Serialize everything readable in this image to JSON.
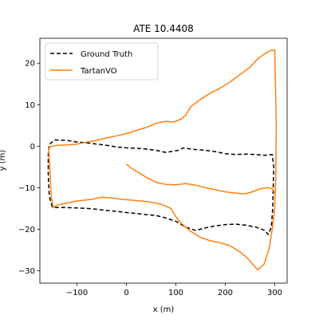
{
  "chart_data": {
    "type": "line",
    "title": "ATE 10.4408",
    "xlabel": "x (m)",
    "ylabel": "y (m)",
    "xlim": [
      -175,
      325
    ],
    "ylim": [
      -33,
      26
    ],
    "xticks": [
      -100,
      0,
      100,
      200,
      300
    ],
    "yticks": [
      -30,
      -20,
      -10,
      0,
      10,
      20
    ],
    "xtick_labels": [
      "−100",
      "0",
      "100",
      "200",
      "300"
    ],
    "ytick_labels": [
      "−30",
      "−20",
      "−10",
      "0",
      "10",
      "20"
    ],
    "grid": false,
    "legend_position": "upper-left",
    "series": [
      {
        "name": "Ground Truth",
        "color": "#000000",
        "dash": "dashed",
        "x": [
          -155,
          -145,
          -120,
          -100,
          -80,
          -60,
          -40,
          -20,
          0,
          20,
          40,
          60,
          80,
          95,
          105,
          115,
          125,
          140,
          160,
          180,
          200,
          220,
          240,
          260,
          280,
          295,
          298,
          297,
          296,
          293,
          287,
          280,
          262,
          240,
          220,
          200,
          180,
          160,
          140,
          120,
          100,
          80,
          70,
          60,
          40,
          20,
          0,
          -20,
          -40,
          -60,
          -80,
          -100,
          -120,
          -140,
          -150,
          -156,
          -158,
          -158,
          -157,
          -155
        ],
        "y": [
          0.5,
          1.5,
          1.4,
          1.0,
          0.8,
          0.5,
          0.2,
          -0.2,
          -0.4,
          -0.5,
          -0.7,
          -1.0,
          -1.5,
          -1.2,
          -1.0,
          -0.4,
          -0.6,
          -0.8,
          -1.0,
          -1.3,
          -1.8,
          -2.0,
          -1.9,
          -2.0,
          -2.2,
          -2.0,
          -5,
          -10,
          -15,
          -19.5,
          -21.3,
          -20.3,
          -19.5,
          -19.0,
          -18.8,
          -18.9,
          -19.2,
          -19.7,
          -20.3,
          -19.5,
          -18.1,
          -17.3,
          -17.0,
          -16.7,
          -16.5,
          -16.2,
          -16.0,
          -15.7,
          -15.5,
          -15.2,
          -15.0,
          -14.9,
          -14.8,
          -14.8,
          -14.6,
          -12,
          -7,
          -2,
          -0.5,
          0.5
        ]
      },
      {
        "name": "TartanVO",
        "color": "#ff7f0e",
        "dash": "solid",
        "x": [
          -140,
          -120,
          -100,
          -80,
          -60,
          -40,
          -20,
          0,
          20,
          40,
          60,
          80,
          95,
          110,
          120,
          130,
          150,
          170,
          190,
          210,
          230,
          250,
          265,
          280,
          290,
          300,
          303,
          302,
          300,
          295,
          288,
          278,
          265,
          245,
          230,
          210,
          190,
          170,
          150,
          130,
          110,
          100,
          90,
          70,
          50,
          30,
          10,
          -10,
          -30,
          -50,
          -70,
          -100,
          -120,
          -140,
          -148,
          -152,
          -154,
          -156,
          -157,
          -157,
          -155,
          -150,
          -145,
          -140
        ],
        "y": [
          0.2,
          0.3,
          0.5,
          1.0,
          1.4,
          2.0,
          2.5,
          3.0,
          3.8,
          4.5,
          5.5,
          6.0,
          5.8,
          6.5,
          7.5,
          9.5,
          11.3,
          12.8,
          14.0,
          15.5,
          17.3,
          19.0,
          21.0,
          22.3,
          23.0,
          23.2,
          5,
          -8,
          -15,
          -20,
          -25,
          -28.5,
          -29.8,
          -27.0,
          -25.5,
          -24.0,
          -23.3,
          -22.8,
          -22.0,
          -20.5,
          -18.5,
          -17.0,
          -15.0,
          -14.0,
          -13.5,
          -13.2,
          -13.0,
          -12.8,
          -12.5,
          -12.3,
          -12.8,
          -13.2,
          -13.7,
          -14.2,
          -14.8,
          -12,
          -7,
          -3,
          -1.5,
          -0.8,
          -0.2,
          0.0,
          0.1,
          0.2
        ]
      },
      {
        "name": "",
        "color": "#ff7f0e",
        "dash": "solid",
        "x": [
          0,
          10,
          20,
          40,
          60,
          80,
          100,
          120,
          140,
          160,
          180,
          200,
          220,
          240,
          255,
          270,
          285,
          295,
          300
        ],
        "y": [
          -4.3,
          -5.3,
          -6.0,
          -7.5,
          -8.7,
          -9.2,
          -9.3,
          -9.0,
          -9.4,
          -10.0,
          -10.5,
          -11.0,
          -11.3,
          -11.5,
          -11.0,
          -10.3,
          -10.0,
          -10.2,
          -11.3
        ]
      }
    ]
  }
}
